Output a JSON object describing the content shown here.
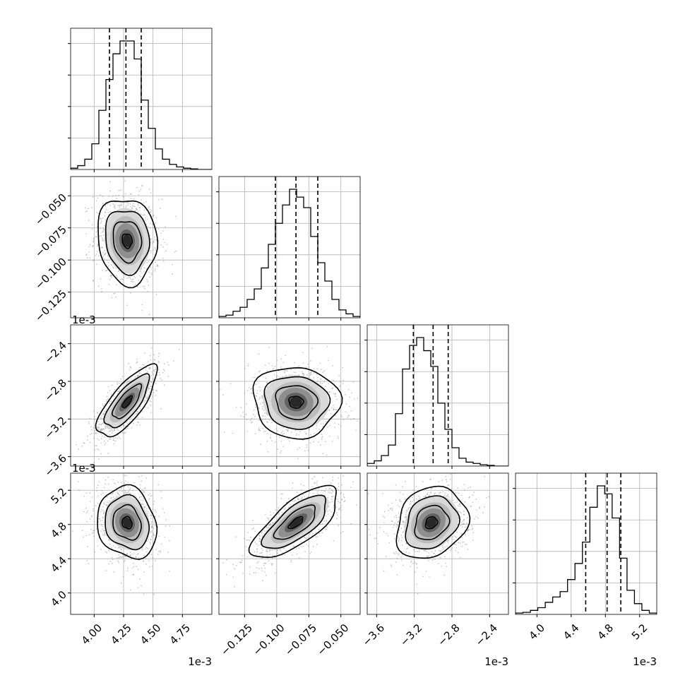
{
  "chart_data": {
    "type": "corner",
    "grid": true,
    "histogram_quantile_lines": true,
    "contour_levels": 4,
    "parameters": [
      {
        "range": [
          3.8,
          5.0
        ],
        "offset_text": "1e-3",
        "ticks": [
          4.0,
          4.25,
          4.5,
          4.75
        ],
        "tick_labels": [
          "4.00",
          "4.25",
          "4.50",
          "4.75"
        ],
        "quantiles": [
          4.13,
          4.27,
          4.4
        ],
        "center": 4.28,
        "sigma": 0.12
      },
      {
        "range": [
          -0.145,
          -0.035
        ],
        "offset_text": "",
        "ticks": [
          -0.125,
          -0.1,
          -0.075,
          -0.05
        ],
        "tick_labels": [
          "−0.125",
          "−0.100",
          "−0.075",
          "−0.050"
        ],
        "quantiles": [
          -0.101,
          -0.085,
          -0.068
        ],
        "center": -0.085,
        "sigma": 0.016
      },
      {
        "range": [
          -3.7,
          -2.2
        ],
        "offset_text": "1e-3",
        "ticks": [
          -3.6,
          -3.2,
          -2.8,
          -2.4
        ],
        "tick_labels": [
          "−3.6",
          "−3.2",
          "−2.8",
          "−2.4"
        ],
        "quantiles": [
          -3.21,
          -3.0,
          -2.84
        ],
        "center": -3.02,
        "sigma": 0.18
      },
      {
        "range": [
          3.75,
          5.4
        ],
        "offset_text": "1e-3",
        "ticks": [
          4.0,
          4.4,
          4.8,
          5.2
        ],
        "tick_labels": [
          "4.0",
          "4.4",
          "4.8",
          "5.2"
        ],
        "quantiles": [
          4.57,
          4.82,
          4.98
        ],
        "center": 4.82,
        "sigma": 0.2
      }
    ],
    "correlations": {
      "1-0": -0.1,
      "2-0": 0.75,
      "2-1": -0.05,
      "3-0": -0.15,
      "3-1": 0.72,
      "3-2": 0.2
    },
    "histograms": {
      "0": [
        0.01,
        0.03,
        0.08,
        0.2,
        0.46,
        0.7,
        0.9,
        1.0,
        1.0,
        0.86,
        0.54,
        0.32,
        0.16,
        0.08,
        0.04,
        0.02,
        0.01,
        0.005,
        0,
        0
      ],
      "1": [
        0.01,
        0.02,
        0.05,
        0.08,
        0.14,
        0.22,
        0.38,
        0.56,
        0.72,
        0.86,
        0.98,
        0.92,
        0.84,
        0.62,
        0.42,
        0.28,
        0.14,
        0.06,
        0.03,
        0.01
      ],
      "2": [
        0.02,
        0.04,
        0.08,
        0.16,
        0.4,
        0.74,
        0.92,
        0.98,
        0.88,
        0.76,
        0.48,
        0.28,
        0.14,
        0.06,
        0.03,
        0.02,
        0.01,
        0.005,
        0,
        0
      ],
      "3": [
        0.01,
        0.015,
        0.03,
        0.05,
        0.09,
        0.13,
        0.17,
        0.26,
        0.38,
        0.54,
        0.8,
        0.96,
        0.9,
        0.72,
        0.42,
        0.18,
        0.08,
        0.03,
        0.01
      ]
    }
  }
}
